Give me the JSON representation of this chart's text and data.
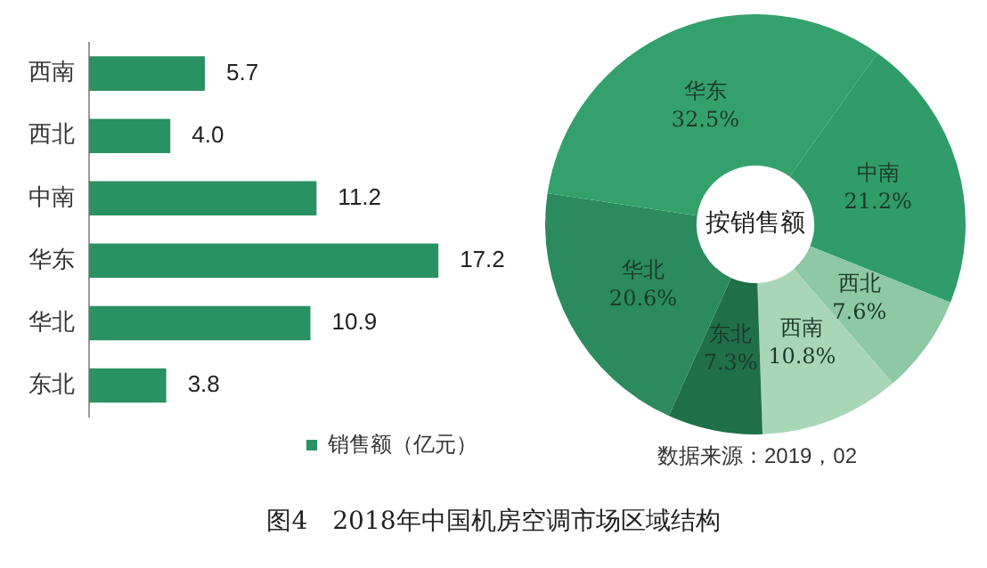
{
  "chart_data": [
    {
      "type": "bar",
      "orientation": "horizontal",
      "title": "图4　2018年中国机房空调市场区域结构",
      "categories": [
        "西南",
        "西北",
        "中南",
        "华东",
        "华北",
        "东北"
      ],
      "series": [
        {
          "name": "销售额（亿元）",
          "color": "#2a9162",
          "values": [
            5.7,
            4.0,
            11.2,
            17.2,
            10.9,
            3.8
          ],
          "value_labels": [
            "5.7",
            "4.0",
            "11.2",
            "17.2",
            "10.9",
            "3.8"
          ]
        }
      ],
      "legend": "bottom right",
      "tick_labels": "y"
    },
    {
      "type": "donut",
      "categories": [
        "中南",
        "西北",
        "西南",
        "东北",
        "华北",
        "华东"
      ],
      "values": [
        21.2,
        7.6,
        10.8,
        7.3,
        20.6,
        32.5
      ],
      "colors": [
        "#2f9c69",
        "#8ec8a4",
        "#a9d6b9",
        "#1f6f49",
        "#2b8a5e",
        "#34a16d"
      ],
      "value_labels": [
        "21.2%",
        "7.6%",
        "10.8%",
        "7.3%",
        "20.6%",
        "32.5%"
      ],
      "annotations": [
        "按销售额",
        "数据来源：2019，02"
      ],
      "legend": false
    }
  ]
}
